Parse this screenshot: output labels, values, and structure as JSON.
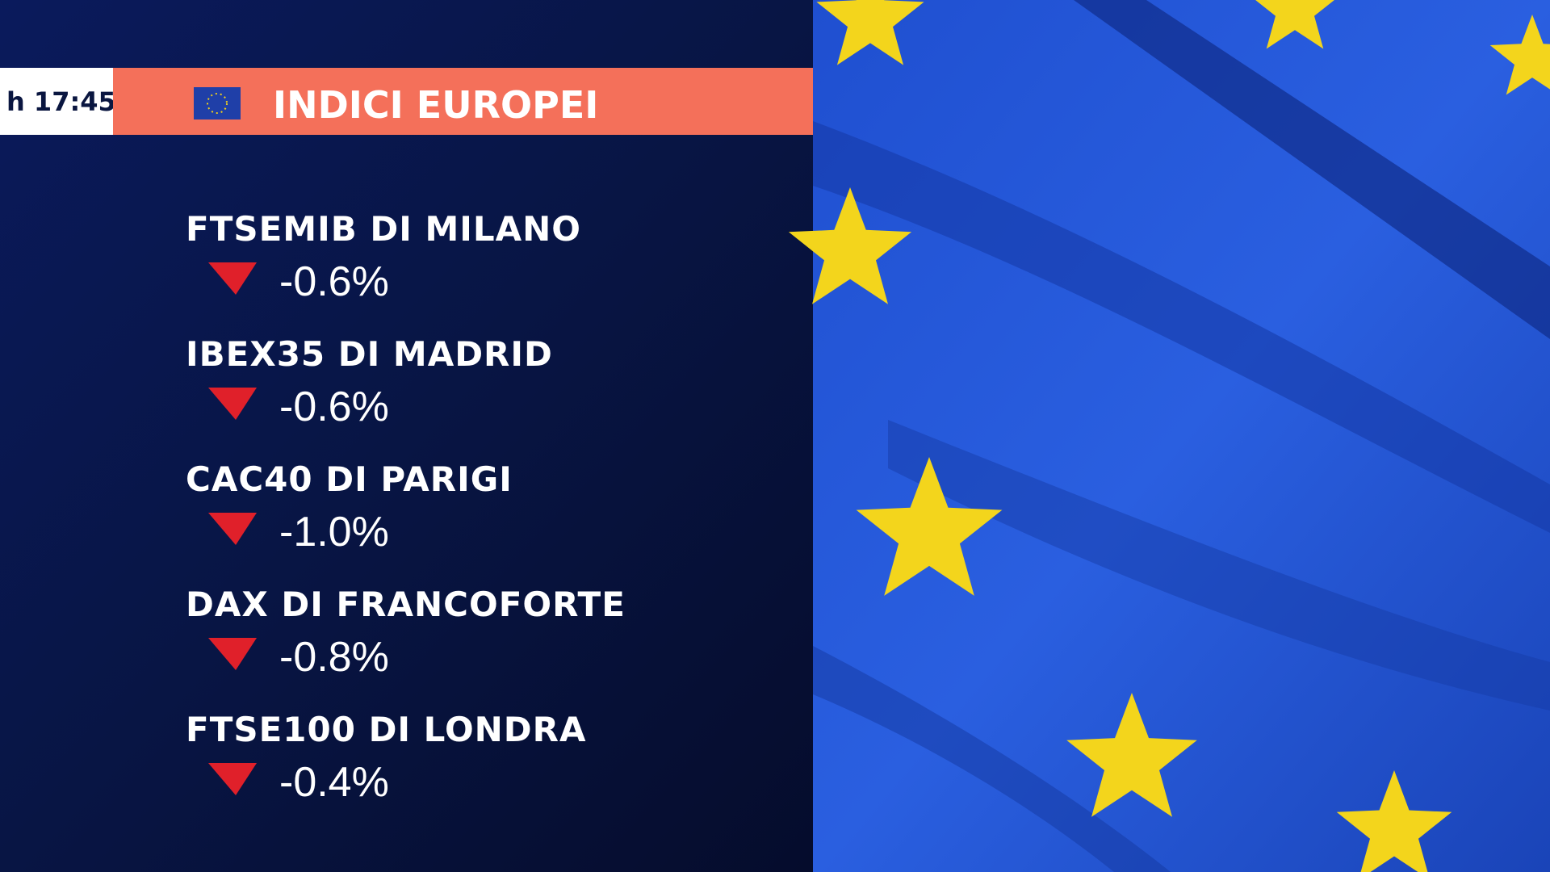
{
  "header": {
    "time": "h 17:45",
    "title": "INDICI EUROPEI"
  },
  "indices": [
    {
      "name": "FTSEMIB DI MILANO",
      "change": "-0.6%"
    },
    {
      "name": "IBEX35 DI MADRID",
      "change": "-0.6%"
    },
    {
      "name": "CAC40 DI PARIGI",
      "change": "-1.0%"
    },
    {
      "name": "DAX DI FRANCOFORTE",
      "change": "-0.8%"
    },
    {
      "name": "FTSE100 DI LONDRA",
      "change": "-0.4%"
    }
  ]
}
